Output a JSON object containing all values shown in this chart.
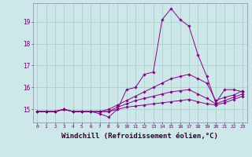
{
  "bg_color": "#cce8e8",
  "line_color": "#8b008b",
  "grid_color": "#aacccc",
  "xlabel": "Windchill (Refroidissement éolien,°C)",
  "xlabel_fontsize": 6.5,
  "xtick_labels": [
    "0",
    "1",
    "2",
    "3",
    "4",
    "5",
    "6",
    "7",
    "8",
    "9",
    "10",
    "11",
    "12",
    "13",
    "14",
    "15",
    "16",
    "17",
    "18",
    "19",
    "20",
    "21",
    "22",
    "23"
  ],
  "ytick_labels": [
    "15",
    "16",
    "17",
    "18",
    "19"
  ],
  "ylim": [
    14.4,
    19.85
  ],
  "xlim": [
    -0.5,
    23.5
  ],
  "series": [
    [
      14.9,
      14.9,
      14.9,
      15.0,
      14.9,
      14.9,
      14.9,
      14.8,
      14.65,
      15.0,
      15.9,
      16.0,
      16.6,
      16.7,
      19.1,
      19.6,
      19.1,
      18.8,
      17.5,
      16.5,
      15.3,
      15.9,
      15.9,
      15.8
    ],
    [
      14.9,
      14.9,
      14.9,
      15.0,
      14.9,
      14.9,
      14.9,
      14.9,
      15.0,
      15.2,
      15.4,
      15.6,
      15.8,
      16.0,
      16.2,
      16.4,
      16.5,
      16.6,
      16.4,
      16.2,
      15.4,
      15.55,
      15.65,
      15.85
    ],
    [
      14.9,
      14.9,
      14.9,
      15.0,
      14.9,
      14.9,
      14.9,
      14.9,
      14.9,
      15.1,
      15.25,
      15.4,
      15.5,
      15.6,
      15.7,
      15.8,
      15.85,
      15.9,
      15.7,
      15.5,
      15.25,
      15.4,
      15.55,
      15.7
    ],
    [
      14.9,
      14.9,
      14.9,
      15.0,
      14.9,
      14.9,
      14.9,
      14.9,
      14.9,
      15.0,
      15.1,
      15.15,
      15.2,
      15.25,
      15.3,
      15.35,
      15.4,
      15.45,
      15.35,
      15.25,
      15.2,
      15.3,
      15.45,
      15.6
    ]
  ]
}
